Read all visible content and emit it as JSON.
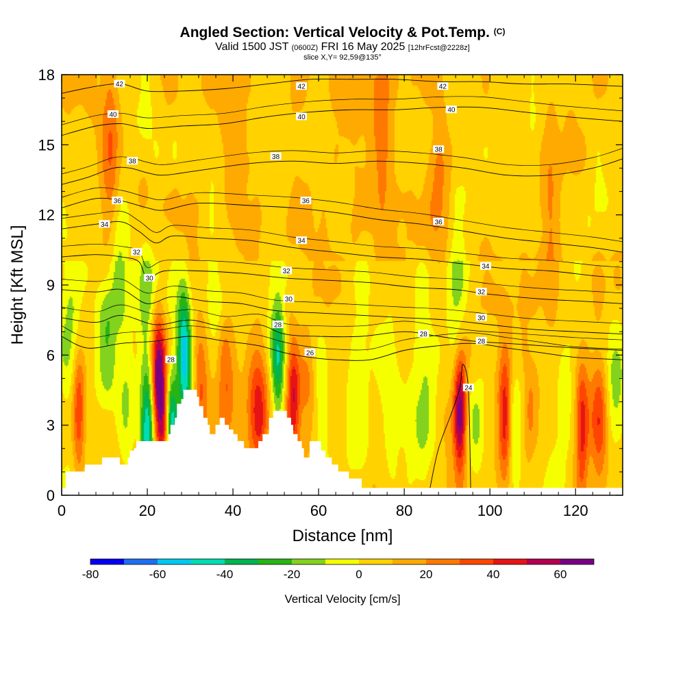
{
  "header": {
    "title_main": "Angled Section: Vertical Velocity & Pot.Temp.",
    "title_suffix": "(C)",
    "subtitle_main": "Valid 1500 JST",
    "subtitle_utc": "(0600Z)",
    "subtitle_date": "FRI 16 May 2025",
    "subtitle_fcst": "[12hrFcst@2228z]",
    "slice": "slice X,Y= 92,59@135°"
  },
  "chart_data": {
    "type": "heatmap",
    "xlabel": "Distance [nm]",
    "ylabel": "Height [Kft MSL]",
    "xlim": [
      0,
      131
    ],
    "ylim": [
      0,
      18
    ],
    "x_ticks": [
      0,
      20,
      40,
      60,
      80,
      100,
      120
    ],
    "y_ticks": [
      0,
      3,
      6,
      9,
      12,
      15,
      18
    ],
    "colorbar": {
      "label": "Vertical Velocity [cm/s]",
      "bounds": [
        -80,
        -70,
        -60,
        -50,
        -40,
        -30,
        -20,
        -10,
        0,
        10,
        20,
        30,
        40,
        50,
        60,
        70
      ],
      "colors": [
        "#0000f0",
        "#1e6ef0",
        "#00c8f0",
        "#00dcb4",
        "#00b450",
        "#28b414",
        "#82d21e",
        "#f5ff00",
        "#ffd200",
        "#ffaa00",
        "#ff7800",
        "#ff4600",
        "#e61414",
        "#b40050",
        "#780082"
      ],
      "tick_labels": [
        "-80",
        "-60",
        "-40",
        "-20",
        "0",
        "20",
        "40",
        "60"
      ]
    },
    "updrafts": [
      {
        "x": 4,
        "z": 3.6,
        "w": 38
      },
      {
        "x": 11.5,
        "z": 14.5,
        "w": 25
      },
      {
        "x": 19.5,
        "z": 13.5,
        "w": 18
      },
      {
        "x": 22.5,
        "z": 5.2,
        "w": 58
      },
      {
        "x": 24,
        "z": 3.0,
        "w": 45
      },
      {
        "x": 32,
        "z": 4.5,
        "w": 30
      },
      {
        "x": 38,
        "z": 5.0,
        "w": 28
      },
      {
        "x": 46,
        "z": 3.6,
        "w": 35
      },
      {
        "x": 54,
        "z": 4.0,
        "w": 42
      },
      {
        "x": 58,
        "z": 4.5,
        "w": 25
      },
      {
        "x": 93,
        "z": 3.6,
        "w": 65
      },
      {
        "x": 103.5,
        "z": 3.3,
        "w": 48
      },
      {
        "x": 109,
        "z": 3.5,
        "w": 22
      },
      {
        "x": 121.5,
        "z": 3.0,
        "w": 45
      },
      {
        "x": 125.5,
        "z": 3.2,
        "w": 35
      },
      {
        "x": 88,
        "z": 13.0,
        "w": 15
      },
      {
        "x": 75,
        "z": 15.5,
        "w": 12
      },
      {
        "x": 114,
        "z": 12.5,
        "w": 14
      }
    ],
    "downdrafts": [
      {
        "x": 10.5,
        "z": 6.5,
        "w": -28
      },
      {
        "x": 15,
        "z": 3.5,
        "w": -18
      },
      {
        "x": 13.5,
        "z": 10.0,
        "w": -20
      },
      {
        "x": 20,
        "z": 2.6,
        "w": -60
      },
      {
        "x": 25.5,
        "z": 2.8,
        "w": -62
      },
      {
        "x": 28.5,
        "z": 6.5,
        "w": -45
      },
      {
        "x": 29.5,
        "z": 4.5,
        "w": -35
      },
      {
        "x": 19.5,
        "z": 9.0,
        "w": -18
      },
      {
        "x": 19.5,
        "z": 17.0,
        "w": -16
      },
      {
        "x": 36,
        "z": 6.5,
        "w": -15
      },
      {
        "x": 50.5,
        "z": 5.8,
        "w": -40
      },
      {
        "x": 59.5,
        "z": 5.0,
        "w": -18
      },
      {
        "x": 68,
        "z": 3.5,
        "w": -12
      },
      {
        "x": 76.5,
        "z": 3.2,
        "w": -13
      },
      {
        "x": 84.5,
        "z": 3.5,
        "w": -12
      },
      {
        "x": 92.5,
        "z": 8.5,
        "w": -22
      },
      {
        "x": 97,
        "z": 3.2,
        "w": -14
      },
      {
        "x": 106.5,
        "z": 3.3,
        "w": -13
      },
      {
        "x": 117,
        "z": 3.5,
        "w": -12
      },
      {
        "x": 129,
        "z": 4.5,
        "w": -16
      },
      {
        "x": 2,
        "z": 7.5,
        "w": -14
      }
    ],
    "terrain_top": [
      [
        0,
        0.3
      ],
      [
        1,
        1.0
      ],
      [
        5,
        1.0
      ],
      [
        5.5,
        1.3
      ],
      [
        9,
        1.3
      ],
      [
        9.5,
        1.6
      ],
      [
        13,
        1.6
      ],
      [
        13.5,
        1.3
      ],
      [
        15,
        1.3
      ],
      [
        15.5,
        1.6
      ],
      [
        16,
        1.9
      ],
      [
        17,
        2.0
      ],
      [
        17.5,
        2.3
      ],
      [
        24.5,
        2.3
      ],
      [
        25,
        2.6
      ],
      [
        25.5,
        3.0
      ],
      [
        26.5,
        3.3
      ],
      [
        27,
        3.9
      ],
      [
        28,
        4.1
      ],
      [
        28.5,
        4.5
      ],
      [
        31,
        4.5
      ],
      [
        31.5,
        4.2
      ],
      [
        32,
        3.8
      ],
      [
        33,
        3.3
      ],
      [
        34,
        3.0
      ],
      [
        34.5,
        2.6
      ],
      [
        35.5,
        2.6
      ],
      [
        36,
        3.0
      ],
      [
        37,
        3.3
      ],
      [
        38,
        3.0
      ],
      [
        39,
        2.8
      ],
      [
        40,
        2.6
      ],
      [
        41,
        2.3
      ],
      [
        42.5,
        2.0
      ],
      [
        45.5,
        2.0
      ],
      [
        46,
        2.3
      ],
      [
        47,
        2.6
      ],
      [
        48.5,
        3.3
      ],
      [
        49.5,
        3.6
      ],
      [
        51.5,
        3.6
      ],
      [
        52.5,
        3.3
      ],
      [
        53.5,
        3.0
      ],
      [
        54,
        2.6
      ],
      [
        55,
        2.3
      ],
      [
        56,
        2.0
      ],
      [
        56.5,
        1.6
      ],
      [
        57.5,
        1.6
      ],
      [
        58,
        2.3
      ],
      [
        60,
        2.3
      ],
      [
        60.5,
        1.9
      ],
      [
        61.5,
        1.6
      ],
      [
        63,
        1.3
      ],
      [
        64.5,
        1.0
      ],
      [
        67,
        0.7
      ],
      [
        70,
        0.3
      ],
      [
        131,
        0.3
      ]
    ],
    "theta_contours": [
      {
        "level": 24,
        "pts": [
          [
            86,
            0.3
          ],
          [
            88,
            2.0
          ],
          [
            91,
            3.5
          ],
          [
            93,
            4.6
          ],
          [
            93.7,
            5.6
          ],
          [
            95,
            4.5
          ],
          [
            95.5,
            0.3
          ]
        ]
      },
      {
        "level": 26,
        "pts": [
          [
            0,
            6.8
          ],
          [
            6,
            6.3
          ],
          [
            14,
            6.5
          ],
          [
            22,
            6.6
          ],
          [
            30,
            6.8
          ],
          [
            38,
            6.6
          ],
          [
            46,
            6.4
          ],
          [
            52,
            6.1
          ],
          [
            58,
            5.9
          ],
          [
            64,
            5.8
          ],
          [
            72,
            5.8
          ],
          [
            80,
            6.2
          ],
          [
            88,
            6.4
          ],
          [
            96,
            6.5
          ],
          [
            104,
            6.3
          ],
          [
            112,
            6.1
          ],
          [
            120,
            5.9
          ],
          [
            131,
            5.8
          ]
        ]
      },
      {
        "level": 28,
        "pts": [
          [
            0,
            7.6
          ],
          [
            8,
            7.4
          ],
          [
            14,
            7.7
          ],
          [
            22,
            7.3
          ],
          [
            30,
            7.5
          ],
          [
            38,
            7.2
          ],
          [
            46,
            7.3
          ],
          [
            52,
            6.9
          ],
          [
            60,
            6.8
          ],
          [
            70,
            6.8
          ],
          [
            80,
            7.0
          ],
          [
            88,
            6.8
          ],
          [
            96,
            6.6
          ],
          [
            104,
            6.5
          ],
          [
            112,
            6.4
          ],
          [
            120,
            6.3
          ],
          [
            131,
            6.2
          ]
        ]
      },
      {
        "level": 30,
        "pts": [
          [
            0,
            8.8
          ],
          [
            8,
            8.7
          ],
          [
            14,
            8.8
          ],
          [
            20,
            8.2
          ],
          [
            26,
            8.5
          ],
          [
            34,
            8.3
          ],
          [
            42,
            8.2
          ],
          [
            50,
            7.9
          ],
          [
            60,
            7.8
          ],
          [
            70,
            7.7
          ],
          [
            80,
            7.6
          ],
          [
            90,
            7.5
          ],
          [
            100,
            7.3
          ],
          [
            110,
            7.1
          ],
          [
            120,
            7.0
          ],
          [
            131,
            6.9
          ]
        ]
      },
      {
        "level": 32,
        "pts": [
          [
            0,
            10.2
          ],
          [
            8,
            10.3
          ],
          [
            14,
            10.2
          ],
          [
            18,
            10.0
          ],
          [
            20,
            9.3
          ],
          [
            24,
            9.6
          ],
          [
            32,
            9.6
          ],
          [
            42,
            9.5
          ],
          [
            52,
            9.3
          ],
          [
            62,
            9.2
          ],
          [
            72,
            9.1
          ],
          [
            82,
            8.9
          ],
          [
            92,
            8.8
          ],
          [
            100,
            8.6
          ],
          [
            112,
            8.4
          ],
          [
            122,
            8.3
          ],
          [
            131,
            8.2
          ]
        ]
      },
      {
        "level": 34,
        "pts": [
          [
            0,
            11.4
          ],
          [
            8,
            11.6
          ],
          [
            14,
            11.7
          ],
          [
            18,
            11.3
          ],
          [
            22,
            10.8
          ],
          [
            26,
            11.1
          ],
          [
            34,
            11.0
          ],
          [
            44,
            10.9
          ],
          [
            54,
            10.6
          ],
          [
            64,
            10.4
          ],
          [
            74,
            10.2
          ],
          [
            84,
            10.1
          ],
          [
            94,
            9.9
          ],
          [
            104,
            9.7
          ],
          [
            114,
            9.6
          ],
          [
            124,
            9.4
          ],
          [
            131,
            9.3
          ]
        ]
      },
      {
        "level": 36,
        "pts": [
          [
            0,
            12.3
          ],
          [
            8,
            12.7
          ],
          [
            14,
            12.6
          ],
          [
            20,
            12.3
          ],
          [
            24,
            12.2
          ],
          [
            32,
            12.5
          ],
          [
            44,
            12.4
          ],
          [
            54,
            12.3
          ],
          [
            64,
            12.1
          ],
          [
            74,
            11.8
          ],
          [
            84,
            11.6
          ],
          [
            94,
            11.3
          ],
          [
            104,
            11.0
          ],
          [
            114,
            10.8
          ],
          [
            124,
            10.6
          ],
          [
            131,
            10.4
          ]
        ]
      },
      {
        "level": 38,
        "pts": [
          [
            0,
            13.3
          ],
          [
            6,
            13.6
          ],
          [
            12,
            14.0
          ],
          [
            16,
            14.0
          ],
          [
            20,
            13.8
          ],
          [
            24,
            13.7
          ],
          [
            32,
            13.9
          ],
          [
            44,
            14.2
          ],
          [
            54,
            14.3
          ],
          [
            64,
            14.2
          ],
          [
            74,
            14.3
          ],
          [
            84,
            14.2
          ],
          [
            94,
            14.0
          ],
          [
            104,
            13.7
          ],
          [
            114,
            13.7
          ],
          [
            124,
            14.0
          ],
          [
            131,
            14.4
          ]
        ]
      },
      {
        "level": 40,
        "pts": [
          [
            0,
            15.4
          ],
          [
            8,
            15.8
          ],
          [
            14,
            15.9
          ],
          [
            20,
            15.7
          ],
          [
            28,
            15.8
          ],
          [
            38,
            15.9
          ],
          [
            48,
            16.2
          ],
          [
            58,
            16.4
          ],
          [
            68,
            16.5
          ],
          [
            78,
            16.5
          ],
          [
            88,
            16.6
          ],
          [
            98,
            16.6
          ],
          [
            108,
            16.4
          ],
          [
            118,
            16.2
          ],
          [
            131,
            16.0
          ]
        ]
      },
      {
        "level": 42,
        "pts": [
          [
            0,
            17.2
          ],
          [
            8,
            17.5
          ],
          [
            14,
            17.6
          ],
          [
            20,
            17.3
          ],
          [
            28,
            17.3
          ],
          [
            38,
            17.4
          ],
          [
            48,
            17.6
          ],
          [
            58,
            17.8
          ],
          [
            68,
            17.8
          ],
          [
            78,
            17.8
          ],
          [
            88,
            17.7
          ],
          [
            98,
            17.7
          ],
          [
            108,
            17.6
          ],
          [
            118,
            17.6
          ],
          [
            131,
            17.5
          ]
        ]
      }
    ],
    "contour_labels": [
      {
        "text": "42",
        "x": 13.5,
        "z": 17.6
      },
      {
        "text": "42",
        "x": 56,
        "z": 17.5
      },
      {
        "text": "42",
        "x": 89,
        "z": 17.5
      },
      {
        "text": "40",
        "x": 12,
        "z": 16.3
      },
      {
        "text": "40",
        "x": 56,
        "z": 16.2
      },
      {
        "text": "40",
        "x": 91,
        "z": 16.5
      },
      {
        "text": "38",
        "x": 16.5,
        "z": 14.3
      },
      {
        "text": "38",
        "x": 50,
        "z": 14.5
      },
      {
        "text": "38",
        "x": 88,
        "z": 14.8
      },
      {
        "text": "36",
        "x": 13,
        "z": 12.6
      },
      {
        "text": "36",
        "x": 57,
        "z": 12.6
      },
      {
        "text": "36",
        "x": 88,
        "z": 11.7
      },
      {
        "text": "34",
        "x": 10,
        "z": 11.6
      },
      {
        "text": "34",
        "x": 56,
        "z": 10.9
      },
      {
        "text": "34",
        "x": 99,
        "z": 9.8
      },
      {
        "text": "32",
        "x": 17.5,
        "z": 10.4
      },
      {
        "text": "32",
        "x": 52.5,
        "z": 9.6
      },
      {
        "text": "32",
        "x": 98,
        "z": 8.7
      },
      {
        "text": "30",
        "x": 20.5,
        "z": 9.3
      },
      {
        "text": "30",
        "x": 53,
        "z": 8.4
      },
      {
        "text": "30",
        "x": 98,
        "z": 7.6
      },
      {
        "text": "28",
        "x": 50.5,
        "z": 7.3
      },
      {
        "text": "28",
        "x": 84.5,
        "z": 6.9
      },
      {
        "text": "28",
        "x": 98,
        "z": 6.6
      },
      {
        "text": "28",
        "x": 25.5,
        "z": 5.8
      },
      {
        "text": "26",
        "x": 58,
        "z": 6.1
      },
      {
        "text": "24",
        "x": 95,
        "z": 4.6
      }
    ]
  }
}
